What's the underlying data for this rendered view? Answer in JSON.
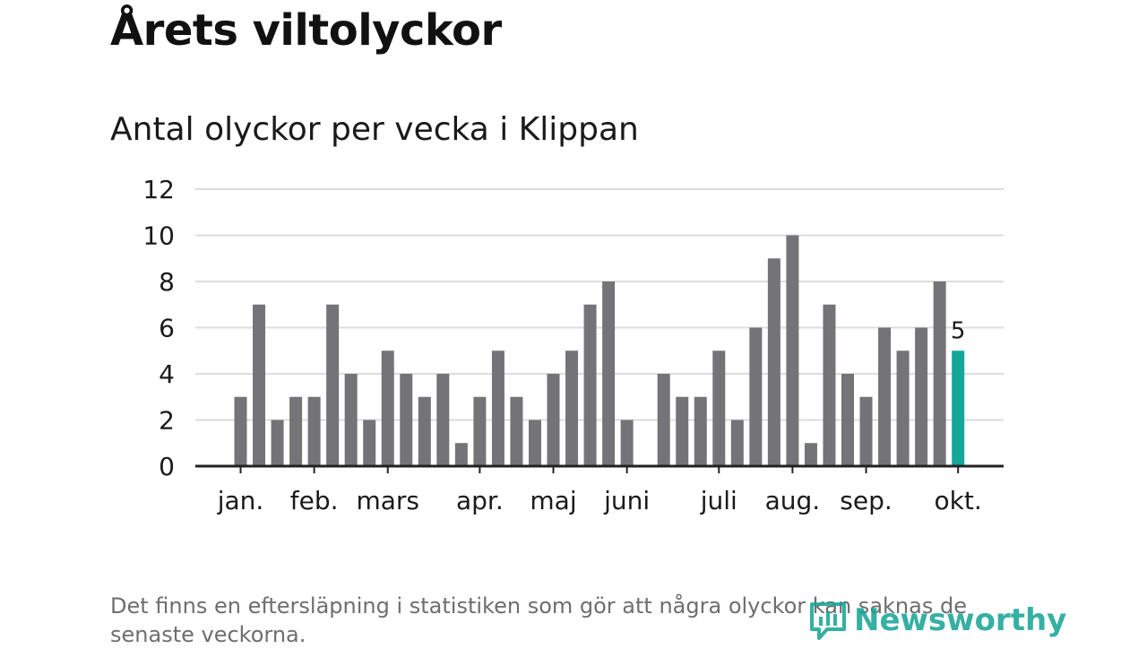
{
  "header": {
    "title": "Årets viltolyckor",
    "subtitle": "Antal olyckor per vecka i Klippan"
  },
  "chart_data": {
    "type": "bar",
    "title": "Antal olyckor per vecka i Klippan",
    "xlabel": "",
    "ylabel": "",
    "ylim": [
      0,
      12
    ],
    "yticks": [
      0,
      2,
      4,
      6,
      8,
      10,
      12
    ],
    "grid": true,
    "values": [
      null,
      3,
      7,
      2,
      3,
      3,
      7,
      4,
      2,
      5,
      4,
      3,
      4,
      1,
      3,
      5,
      3,
      2,
      4,
      5,
      7,
      8,
      2,
      null,
      4,
      3,
      3,
      5,
      2,
      6,
      9,
      10,
      1,
      7,
      4,
      3,
      6,
      5,
      6,
      8,
      5
    ],
    "month_ticks": [
      {
        "label": "jan.",
        "index": 1
      },
      {
        "label": "feb.",
        "index": 5
      },
      {
        "label": "mars",
        "index": 9
      },
      {
        "label": "apr.",
        "index": 14
      },
      {
        "label": "maj",
        "index": 18
      },
      {
        "label": "juni",
        "index": 22
      },
      {
        "label": "juli",
        "index": 27
      },
      {
        "label": "aug.",
        "index": 31
      },
      {
        "label": "sep.",
        "index": 35
      },
      {
        "label": "okt.",
        "index": 40
      }
    ],
    "highlight_index": 40,
    "highlight_label": "5",
    "bar_color": "#747378",
    "highlight_color": "#14a79a",
    "grid_color": "#dddddd",
    "axis_color": "#222222"
  },
  "footer": {
    "note": "Det finns en eftersläpning i statistiken som gör att några olyckor kan saknas de senaste veckorna.",
    "brand": "Newsworthy",
    "brand_color": "#12a394"
  }
}
